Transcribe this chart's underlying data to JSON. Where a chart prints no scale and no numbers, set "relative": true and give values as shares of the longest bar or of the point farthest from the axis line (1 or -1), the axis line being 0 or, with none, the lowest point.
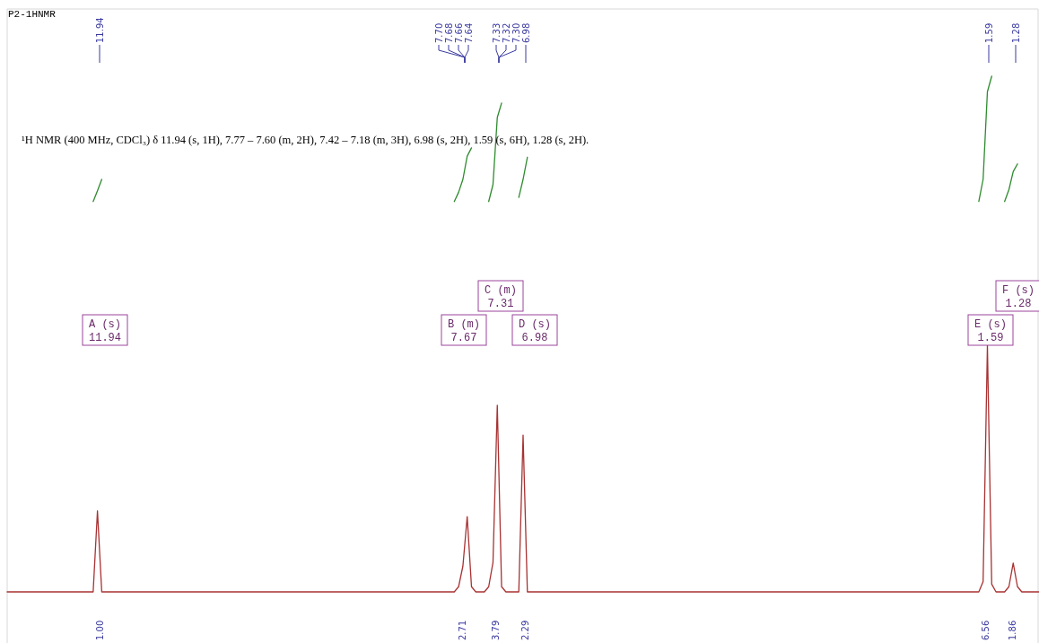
{
  "chart_data": {
    "type": "line",
    "title": "P2-1HNMR",
    "relative": true,
    "categories": [
      null,
      null,
      null,
      null,
      null,
      null,
      null,
      null,
      null,
      null,
      null,
      null,
      null,
      null,
      null,
      null,
      null,
      null,
      null,
      null,
      null,
      null,
      null,
      null,
      null,
      null,
      null,
      null,
      null,
      null,
      null,
      null,
      null,
      null,
      null,
      null,
      null,
      null,
      null,
      null,
      null,
      null,
      null,
      null,
      null,
      null,
      null,
      null,
      null,
      null,
      null,
      null,
      null,
      null,
      null,
      null,
      null,
      null,
      null,
      null,
      null,
      null,
      null,
      null,
      null,
      null,
      null,
      null,
      null,
      null,
      null,
      null,
      null,
      null,
      null,
      null,
      null,
      null,
      null,
      null,
      null,
      null,
      null,
      null,
      null,
      null,
      null,
      null,
      null,
      null,
      null,
      null,
      null,
      null,
      null,
      null,
      null,
      null,
      null,
      null,
      null,
      null,
      null,
      null,
      null,
      null,
      null,
      null,
      null,
      null,
      null,
      null,
      null,
      null,
      null,
      null,
      null,
      null,
      null,
      null,
      null,
      null,
      null,
      null,
      null,
      null,
      null,
      null,
      null,
      null,
      null,
      null,
      null,
      null,
      null,
      null,
      null,
      null,
      null,
      null,
      null,
      null,
      null,
      null,
      null,
      null,
      null,
      null,
      null,
      null,
      null,
      null,
      null,
      null,
      null,
      null,
      null,
      null,
      null,
      null,
      null,
      null,
      null,
      null,
      null,
      null,
      null,
      null,
      null,
      null,
      null,
      null,
      null,
      null,
      null,
      null,
      null,
      null,
      null,
      null,
      null,
      null,
      null,
      null,
      null,
      null,
      null,
      null,
      null,
      null,
      null,
      null,
      null,
      null,
      null,
      null,
      null,
      null,
      null,
      null,
      null,
      null,
      null,
      null,
      null,
      null,
      null,
      null,
      null,
      null,
      null,
      null,
      null,
      null,
      null,
      null,
      null,
      null,
      null,
      null,
      null,
      null,
      null,
      null,
      null,
      null,
      null,
      null,
      null,
      null,
      null,
      null,
      null,
      null,
      null,
      null,
      null,
      null,
      null,
      null,
      null
    ],
    "series": [
      {
        "color": "#a83232",
        "values": [
          0,
          0,
          0,
          0,
          0,
          0,
          0,
          0,
          0,
          0,
          0,
          0,
          0,
          0,
          0,
          0,
          0,
          0,
          0,
          0,
          0,
          0.157,
          0,
          0,
          0,
          0,
          0,
          0,
          0,
          0,
          0,
          0,
          0,
          0,
          0,
          0,
          0,
          0,
          0,
          0,
          0,
          0,
          0,
          0,
          0,
          0,
          0,
          0,
          0,
          0,
          0,
          0,
          0,
          0,
          0,
          0,
          0,
          0,
          0,
          0,
          0,
          0,
          0,
          0,
          0,
          0,
          0,
          0,
          0,
          0,
          0,
          0,
          0,
          0,
          0,
          0,
          0,
          0,
          0,
          0,
          0,
          0,
          0,
          0,
          0,
          0,
          0,
          0,
          0,
          0,
          0,
          0,
          0,
          0,
          0,
          0,
          0,
          0,
          0,
          0,
          0,
          0,
          0,
          0,
          0,
          0.01,
          0.05,
          0.146,
          0.01,
          0,
          0,
          0,
          0.01,
          0.057,
          0.362,
          0.01,
          0,
          0,
          0,
          0,
          0.304,
          0,
          0,
          0,
          0,
          0,
          0,
          0,
          0,
          0,
          0,
          0,
          0,
          0,
          0,
          0,
          0,
          0,
          0,
          0,
          0,
          0,
          0,
          0,
          0,
          0,
          0,
          0,
          0,
          0,
          0,
          0,
          0,
          0,
          0,
          0,
          0,
          0,
          0,
          0,
          0,
          0,
          0,
          0,
          0,
          0,
          0,
          0,
          0,
          0,
          0,
          0,
          0,
          0,
          0,
          0,
          0,
          0,
          0,
          0,
          0,
          0,
          0,
          0,
          0,
          0,
          0,
          0,
          0,
          0,
          0,
          0,
          0,
          0,
          0,
          0,
          0,
          0,
          0,
          0,
          0,
          0,
          0,
          0,
          0,
          0,
          0,
          0,
          0,
          0,
          0,
          0,
          0,
          0,
          0,
          0,
          0,
          0,
          0,
          0,
          0,
          0,
          0,
          0,
          0,
          0,
          0,
          0.02,
          0.478,
          0.015,
          0,
          0,
          0,
          0.01,
          0.056,
          0.01,
          0,
          0,
          0,
          0,
          0
        ]
      },
      {
        "color": "#2e8b2e",
        "values": [
          null,
          null,
          null,
          null,
          null,
          null,
          null,
          null,
          null,
          null,
          null,
          null,
          null,
          null,
          null,
          null,
          null,
          null,
          null,
          null,
          0.757,
          0.778,
          0.8,
          null,
          null,
          null,
          null,
          null,
          null,
          null,
          null,
          null,
          null,
          null,
          null,
          null,
          null,
          null,
          null,
          null,
          null,
          null,
          null,
          null,
          null,
          null,
          null,
          null,
          null,
          null,
          null,
          null,
          null,
          null,
          null,
          null,
          null,
          null,
          null,
          null,
          null,
          null,
          null,
          null,
          null,
          null,
          null,
          null,
          null,
          null,
          null,
          null,
          null,
          null,
          null,
          null,
          null,
          null,
          null,
          null,
          null,
          null,
          null,
          null,
          null,
          null,
          null,
          null,
          null,
          null,
          null,
          null,
          null,
          null,
          null,
          null,
          null,
          null,
          null,
          null,
          null,
          null,
          null,
          null,
          0.757,
          0.775,
          0.8,
          0.845,
          0.861,
          null,
          null,
          null,
          0.757,
          0.79,
          0.92,
          0.948,
          null,
          null,
          null,
          0.765,
          0.8,
          0.843,
          null,
          null,
          null,
          null,
          null,
          null,
          null,
          null,
          null,
          null,
          null,
          null,
          null,
          null,
          null,
          null,
          null,
          null,
          null,
          null,
          null,
          null,
          null,
          null,
          null,
          null,
          null,
          null,
          null,
          null,
          null,
          null,
          null,
          null,
          null,
          null,
          null,
          null,
          null,
          null,
          null,
          null,
          null,
          null,
          null,
          null,
          null,
          null,
          null,
          null,
          null,
          null,
          null,
          null,
          null,
          null,
          null,
          null,
          null,
          null,
          null,
          null,
          null,
          null,
          null,
          null,
          null,
          null,
          null,
          null,
          null,
          null,
          null,
          null,
          null,
          null,
          null,
          null,
          null,
          null,
          null,
          null,
          null,
          null,
          null,
          null,
          null,
          null,
          null,
          null,
          null,
          null,
          null,
          null,
          null,
          null,
          null,
          null,
          null,
          null,
          null,
          null,
          null,
          null,
          0.757,
          0.8,
          0.97,
          1.0,
          null,
          null,
          0.757,
          0.78,
          0.815,
          0.83,
          null,
          null,
          null,
          null,
          null
        ]
      }
    ],
    "annotations": [
      "¹H NMR (400 MHz, CDCl₃) δ 11.94 (s, 1H), 7.77 – 7.60 (m, 2H), 7.42 – 7.18 (m, 3H), 6.98 (s, 2H), 1.59 (s, 6H), 1.28 (s, 2H).",
      "11.94",
      "7.70",
      "7.68",
      "7.66",
      "7.64",
      "7.33",
      "7.32",
      "7.30",
      "6.98",
      "1.59",
      "1.28",
      "A (s)\n11.94",
      "B (m)\n7.67",
      "C (m)\n7.31",
      "D (s)\n6.98",
      "E (s)\n1.59",
      "F (s)\n1.28",
      "1.00",
      "2.71",
      "3.79",
      "2.29",
      "6.56",
      "1.86"
    ]
  }
}
